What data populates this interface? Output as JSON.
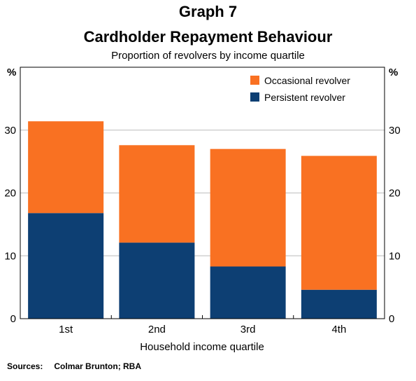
{
  "header": {
    "graph_label": "Graph 7",
    "title": "Cardholder Repayment Behaviour",
    "subtitle": "Proportion of revolvers by income quartile"
  },
  "source": {
    "label": "Sources:",
    "text": "Colmar Brunton; RBA"
  },
  "chart_data": {
    "type": "bar",
    "stacked": true,
    "title": "Cardholder Repayment Behaviour",
    "subtitle": "Proportion of revolvers by income quartile",
    "xlabel": "Household income quartile",
    "ylabel_left": "%",
    "ylabel_right": "%",
    "ylim": [
      0,
      40
    ],
    "yticks": [
      0,
      10,
      20,
      30
    ],
    "grid": true,
    "legend_position": "top-right",
    "categories": [
      "1st",
      "2nd",
      "3rd",
      "4th"
    ],
    "series": [
      {
        "name": "Persistent revolver",
        "color": "#0d3f73",
        "values": [
          16.8,
          12.1,
          8.3,
          4.6
        ]
      },
      {
        "name": "Occasional revolver",
        "color": "#f97122",
        "values": [
          14.6,
          15.5,
          18.7,
          21.3
        ]
      }
    ],
    "legend": [
      {
        "name": "Occasional revolver",
        "color": "#f97122"
      },
      {
        "name": "Persistent revolver",
        "color": "#0d3f73"
      }
    ]
  }
}
